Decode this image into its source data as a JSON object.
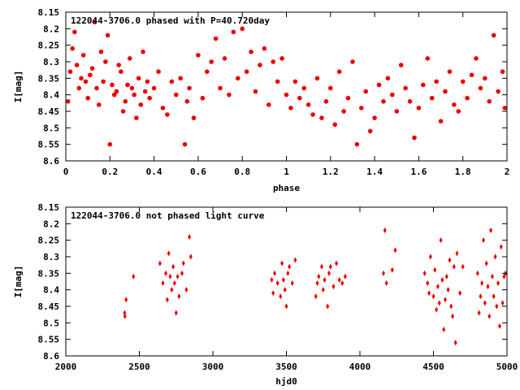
{
  "colors": {
    "points": "#ee0000",
    "axes": "#000000",
    "background": "#ffffff"
  },
  "chart_data": [
    {
      "type": "scatter",
      "title": "122044-3706.0 phased with P=40.720day",
      "xlabel": "phase",
      "ylabel": "I[mag]",
      "xlim": [
        0,
        2
      ],
      "ylim": [
        8.6,
        8.15
      ],
      "y_inverted": true,
      "xticks": [
        "0",
        "0.2",
        "0.4",
        "0.6",
        "0.8",
        "1",
        "1.2",
        "1.4",
        "1.6",
        "1.8",
        "2"
      ],
      "yticks": [
        "8.15",
        "8.2",
        "8.25",
        "8.3",
        "8.35",
        "8.4",
        "8.45",
        "8.5",
        "8.55",
        "8.6"
      ],
      "grid": false,
      "marker": "filled-circle",
      "series": [
        {
          "name": "",
          "points": [
            [
              0.01,
              8.42
            ],
            [
              0.02,
              8.33
            ],
            [
              0.03,
              8.26
            ],
            [
              0.04,
              8.21
            ],
            [
              0.05,
              8.31
            ],
            [
              0.06,
              8.38
            ],
            [
              0.07,
              8.35
            ],
            [
              0.08,
              8.28
            ],
            [
              0.09,
              8.36
            ],
            [
              0.1,
              8.41
            ],
            [
              0.11,
              8.34
            ],
            [
              0.12,
              8.32
            ],
            [
              0.13,
              8.18
            ],
            [
              0.14,
              8.38
            ],
            [
              0.15,
              8.43
            ],
            [
              0.16,
              8.27
            ],
            [
              0.17,
              8.36
            ],
            [
              0.18,
              8.3
            ],
            [
              0.19,
              8.22
            ],
            [
              0.2,
              8.55
            ],
            [
              0.21,
              8.37
            ],
            [
              0.22,
              8.4
            ],
            [
              0.23,
              8.39
            ],
            [
              0.24,
              8.31
            ],
            [
              0.25,
              8.33
            ],
            [
              0.26,
              8.45
            ],
            [
              0.27,
              8.42
            ],
            [
              0.28,
              8.37
            ],
            [
              0.29,
              8.29
            ],
            [
              0.3,
              8.38
            ],
            [
              0.31,
              8.4
            ],
            [
              0.32,
              8.47
            ],
            [
              0.33,
              8.35
            ],
            [
              0.34,
              8.43
            ],
            [
              0.35,
              8.27
            ],
            [
              0.36,
              8.39
            ],
            [
              0.37,
              8.36
            ],
            [
              0.38,
              8.41
            ],
            [
              0.4,
              8.38
            ],
            [
              0.42,
              8.33
            ],
            [
              0.44,
              8.44
            ],
            [
              0.46,
              8.46
            ],
            [
              0.48,
              8.36
            ],
            [
              0.5,
              8.4
            ],
            [
              0.52,
              8.35
            ],
            [
              0.54,
              8.55
            ],
            [
              0.55,
              8.42
            ],
            [
              0.56,
              8.38
            ],
            [
              0.58,
              8.47
            ],
            [
              0.6,
              8.28
            ],
            [
              0.62,
              8.41
            ],
            [
              0.64,
              8.33
            ],
            [
              0.66,
              8.3
            ],
            [
              0.68,
              8.23
            ],
            [
              0.7,
              8.38
            ],
            [
              0.72,
              8.29
            ],
            [
              0.74,
              8.4
            ],
            [
              0.76,
              8.21
            ],
            [
              0.78,
              8.35
            ],
            [
              0.8,
              8.2
            ],
            [
              0.82,
              8.33
            ],
            [
              0.84,
              8.27
            ],
            [
              0.86,
              8.39
            ],
            [
              0.88,
              8.31
            ],
            [
              0.9,
              8.26
            ],
            [
              0.92,
              8.43
            ],
            [
              0.94,
              8.3
            ],
            [
              0.96,
              8.36
            ],
            [
              0.98,
              8.29
            ],
            [
              1.0,
              8.4
            ],
            [
              1.02,
              8.44
            ],
            [
              1.04,
              8.36
            ],
            [
              1.06,
              8.41
            ],
            [
              1.08,
              8.38
            ],
            [
              1.1,
              8.43
            ],
            [
              1.12,
              8.46
            ],
            [
              1.14,
              8.35
            ],
            [
              1.16,
              8.47
            ],
            [
              1.18,
              8.42
            ],
            [
              1.2,
              8.38
            ],
            [
              1.22,
              8.49
            ],
            [
              1.24,
              8.33
            ],
            [
              1.26,
              8.45
            ],
            [
              1.28,
              8.41
            ],
            [
              1.3,
              8.3
            ],
            [
              1.32,
              8.55
            ],
            [
              1.34,
              8.44
            ],
            [
              1.36,
              8.39
            ],
            [
              1.38,
              8.51
            ],
            [
              1.4,
              8.47
            ],
            [
              1.42,
              8.37
            ],
            [
              1.44,
              8.42
            ],
            [
              1.46,
              8.35
            ],
            [
              1.48,
              8.4
            ],
            [
              1.5,
              8.45
            ],
            [
              1.52,
              8.31
            ],
            [
              1.54,
              8.38
            ],
            [
              1.56,
              8.42
            ],
            [
              1.58,
              8.53
            ],
            [
              1.6,
              8.44
            ],
            [
              1.62,
              8.37
            ],
            [
              1.64,
              8.29
            ],
            [
              1.66,
              8.41
            ],
            [
              1.68,
              8.36
            ],
            [
              1.7,
              8.48
            ],
            [
              1.72,
              8.39
            ],
            [
              1.74,
              8.33
            ],
            [
              1.76,
              8.43
            ],
            [
              1.78,
              8.45
            ],
            [
              1.8,
              8.36
            ],
            [
              1.82,
              8.41
            ],
            [
              1.84,
              8.34
            ],
            [
              1.86,
              8.29
            ],
            [
              1.88,
              8.38
            ],
            [
              1.9,
              8.35
            ],
            [
              1.92,
              8.42
            ],
            [
              1.94,
              8.22
            ],
            [
              1.96,
              8.39
            ],
            [
              1.98,
              8.33
            ],
            [
              1.99,
              8.44
            ]
          ]
        }
      ]
    },
    {
      "type": "scatter",
      "title": "122044-3706.0 not phased light curve",
      "xlabel": "hjd0",
      "ylabel": "I[mag]",
      "xlim": [
        2000,
        5000
      ],
      "ylim": [
        8.6,
        8.15
      ],
      "y_inverted": true,
      "xticks": [
        "2000",
        "2500",
        "3000",
        "3500",
        "4000",
        "4500",
        "5000"
      ],
      "yticks": [
        "8.15",
        "8.2",
        "8.25",
        "8.3",
        "8.35",
        "8.4",
        "8.45",
        "8.5",
        "8.55",
        "8.6"
      ],
      "grid": false,
      "marker": "filled-diamond",
      "series": [
        {
          "name": "",
          "points": [
            [
              2400,
              8.47
            ],
            [
              2402,
              8.48
            ],
            [
              2410,
              8.43
            ],
            [
              2460,
              8.36
            ],
            [
              2640,
              8.32
            ],
            [
              2660,
              8.38
            ],
            [
              2680,
              8.35
            ],
            [
              2690,
              8.43
            ],
            [
              2700,
              8.29
            ],
            [
              2710,
              8.36
            ],
            [
              2720,
              8.4
            ],
            [
              2730,
              8.33
            ],
            [
              2740,
              8.38
            ],
            [
              2750,
              8.47
            ],
            [
              2760,
              8.36
            ],
            [
              2770,
              8.42
            ],
            [
              2790,
              8.35
            ],
            [
              2800,
              8.32
            ],
            [
              2820,
              8.4
            ],
            [
              2840,
              8.24
            ],
            [
              2850,
              8.3
            ],
            [
              3400,
              8.37
            ],
            [
              3410,
              8.41
            ],
            [
              3420,
              8.35
            ],
            [
              3440,
              8.38
            ],
            [
              3460,
              8.42
            ],
            [
              3470,
              8.32
            ],
            [
              3480,
              8.37
            ],
            [
              3490,
              8.4
            ],
            [
              3500,
              8.45
            ],
            [
              3510,
              8.35
            ],
            [
              3520,
              8.33
            ],
            [
              3540,
              8.38
            ],
            [
              3560,
              8.31
            ],
            [
              3700,
              8.42
            ],
            [
              3710,
              8.38
            ],
            [
              3720,
              8.36
            ],
            [
              3740,
              8.33
            ],
            [
              3750,
              8.4
            ],
            [
              3760,
              8.37
            ],
            [
              3780,
              8.45
            ],
            [
              3790,
              8.35
            ],
            [
              3800,
              8.33
            ],
            [
              3820,
              8.39
            ],
            [
              3840,
              8.32
            ],
            [
              3860,
              8.37
            ],
            [
              3880,
              8.38
            ],
            [
              3900,
              8.36
            ],
            [
              4160,
              8.35
            ],
            [
              4170,
              8.22
            ],
            [
              4180,
              8.38
            ],
            [
              4220,
              8.34
            ],
            [
              4240,
              8.28
            ],
            [
              4440,
              8.35
            ],
            [
              4460,
              8.38
            ],
            [
              4470,
              8.41
            ],
            [
              4480,
              8.3
            ],
            [
              4500,
              8.42
            ],
            [
              4510,
              8.34
            ],
            [
              4520,
              8.46
            ],
            [
              4530,
              8.39
            ],
            [
              4540,
              8.44
            ],
            [
              4550,
              8.25
            ],
            [
              4560,
              8.37
            ],
            [
              4570,
              8.52
            ],
            [
              4580,
              8.43
            ],
            [
              4590,
              8.36
            ],
            [
              4600,
              8.4
            ],
            [
              4610,
              8.31
            ],
            [
              4620,
              8.45
            ],
            [
              4630,
              8.48
            ],
            [
              4640,
              8.33
            ],
            [
              4650,
              8.56
            ],
            [
              4660,
              8.29
            ],
            [
              4680,
              8.41
            ],
            [
              4700,
              8.33
            ],
            [
              4800,
              8.35
            ],
            [
              4810,
              8.47
            ],
            [
              4820,
              8.42
            ],
            [
              4830,
              8.38
            ],
            [
              4840,
              8.25
            ],
            [
              4850,
              8.44
            ],
            [
              4860,
              8.32
            ],
            [
              4870,
              8.39
            ],
            [
              4880,
              8.48
            ],
            [
              4890,
              8.22
            ],
            [
              4900,
              8.36
            ],
            [
              4910,
              8.42
            ],
            [
              4920,
              8.3
            ],
            [
              4930,
              8.45
            ],
            [
              4940,
              8.38
            ],
            [
              4950,
              8.51
            ],
            [
              4960,
              8.27
            ],
            [
              4970,
              8.44
            ],
            [
              4980,
              8.36
            ],
            [
              4990,
              8.35
            ]
          ]
        }
      ]
    }
  ]
}
